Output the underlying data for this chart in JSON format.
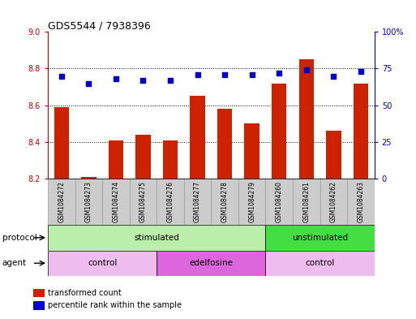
{
  "title": "GDS5544 / 7938396",
  "samples": [
    "GSM1084272",
    "GSM1084273",
    "GSM1084274",
    "GSM1084275",
    "GSM1084276",
    "GSM1084277",
    "GSM1084278",
    "GSM1084279",
    "GSM1084260",
    "GSM1084261",
    "GSM1084262",
    "GSM1084263"
  ],
  "bar_values": [
    8.59,
    8.21,
    8.41,
    8.44,
    8.41,
    8.65,
    8.58,
    8.5,
    8.72,
    8.85,
    8.46,
    8.72
  ],
  "dot_values": [
    70,
    65,
    68,
    67,
    67,
    71,
    71,
    71,
    72,
    74,
    70,
    73
  ],
  "ylim_left": [
    8.2,
    9.0
  ],
  "ylim_right": [
    0,
    100
  ],
  "yticks_left": [
    8.2,
    8.4,
    8.6,
    8.8,
    9.0
  ],
  "yticks_right": [
    0,
    25,
    50,
    75,
    100
  ],
  "ytick_labels_right": [
    "0",
    "25",
    "50",
    "75",
    "100%"
  ],
  "bar_color": "#cc2200",
  "dot_color": "#0000cc",
  "bar_bottom": 8.2,
  "protocol_groups": [
    {
      "label": "stimulated",
      "start": 0,
      "end": 7,
      "color": "#bbeeaa"
    },
    {
      "label": "unstimulated",
      "start": 8,
      "end": 11,
      "color": "#44dd44"
    }
  ],
  "agent_groups": [
    {
      "label": "control",
      "start": 0,
      "end": 3,
      "color": "#eebcee"
    },
    {
      "label": "edelfosine",
      "start": 4,
      "end": 7,
      "color": "#dd66dd"
    },
    {
      "label": "control",
      "start": 8,
      "end": 11,
      "color": "#eebcee"
    }
  ],
  "legend_bar_label": "transformed count",
  "legend_dot_label": "percentile rank within the sample",
  "protocol_label": "protocol",
  "agent_label": "agent",
  "background_color": "#ffffff",
  "left_axis_color": "#cc0000",
  "right_axis_color": "#0000cc",
  "cell_color": "#cccccc",
  "cell_edge_color": "#999999",
  "gridline_color": "#000000"
}
